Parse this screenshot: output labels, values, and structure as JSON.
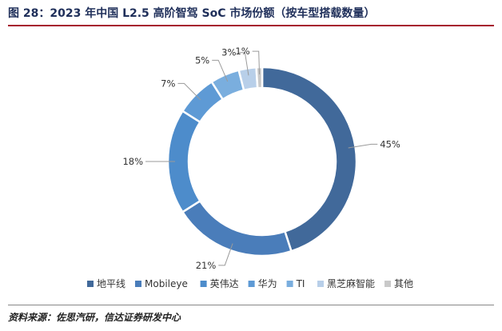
{
  "figure": {
    "title": "图 28：2023 年中国 L2.5 高阶智驾 SoC 市场份额（按车型搭载数量）",
    "source": "资料来源：佐思汽研，信达证券研发中心"
  },
  "chart_data": {
    "type": "donut",
    "title": "图 28：2023 年中国 L2.5 高阶智驾 SoC 市场份额（按车型搭载数量）",
    "categories": [
      "地平线",
      "Mobileye",
      "英伟达",
      "华为",
      "TI",
      "黑芝麻智能",
      "其他"
    ],
    "values": [
      45,
      21,
      18,
      7,
      5,
      3,
      1
    ],
    "value_labels": [
      "45%",
      "21%",
      "18%",
      "7%",
      "5%",
      "3%",
      "1%"
    ],
    "colors": [
      "#41699a",
      "#4a7dba",
      "#4d8ccb",
      "#5e9ad5",
      "#7aaede",
      "#b8cfe9",
      "#c9c9c9"
    ],
    "legend_position": "bottom",
    "start_angle": "top, clockwise"
  }
}
